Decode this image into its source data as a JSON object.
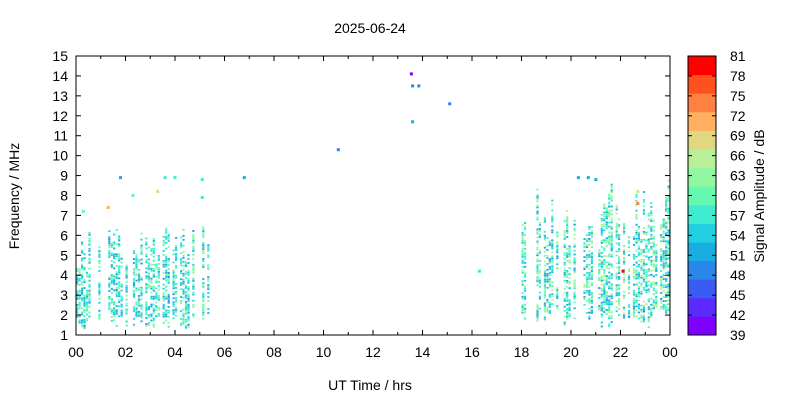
{
  "chart_data": {
    "type": "heatmap",
    "title": "2025-06-24",
    "xlabel": "UT Time / hrs",
    "ylabel": "Frequency / MHz",
    "xlim": [
      0,
      24
    ],
    "ylim": [
      1,
      15
    ],
    "x_ticks": [
      "00",
      "02",
      "04",
      "06",
      "08",
      "10",
      "12",
      "14",
      "16",
      "18",
      "20",
      "22",
      "00"
    ],
    "y_ticks": [
      "1",
      "2",
      "3",
      "4",
      "5",
      "6",
      "7",
      "8",
      "9",
      "10",
      "11",
      "12",
      "13",
      "14",
      "15"
    ],
    "colorbar": {
      "label": "Signal Amplitude / dB",
      "range": [
        39,
        81
      ],
      "ticks": [
        "81",
        "78",
        "75",
        "72",
        "69",
        "66",
        "63",
        "60",
        "57",
        "54",
        "51",
        "48",
        "45",
        "42",
        "39"
      ],
      "colors": [
        "#8000ff",
        "#5a2aff",
        "#3a5cf5",
        "#2a86e8",
        "#1aaee0",
        "#20d0e0",
        "#40ecd0",
        "#66f8b0",
        "#90f8a0",
        "#b8f098",
        "#e0d880",
        "#ffb060",
        "#ff8040",
        "#ff5020",
        "#ff0000"
      ]
    },
    "clusters": [
      {
        "t_start": 0.0,
        "t_end": 5.3,
        "f_min": 1.3,
        "f_max": 6.4,
        "amp_range": [
          50,
          63
        ]
      },
      {
        "t_start": 18.0,
        "t_end": 24.0,
        "f_min": 1.3,
        "f_max": 8.8,
        "amp_range": [
          50,
          66
        ]
      }
    ],
    "points": [
      {
        "t": 13.55,
        "f": 14.1,
        "amp": 39
      },
      {
        "t": 13.6,
        "f": 13.5,
        "amp": 50
      },
      {
        "t": 13.85,
        "f": 13.5,
        "amp": 50
      },
      {
        "t": 15.1,
        "f": 12.6,
        "amp": 50
      },
      {
        "t": 13.6,
        "f": 11.7,
        "amp": 51
      },
      {
        "t": 10.6,
        "f": 10.3,
        "amp": 50
      },
      {
        "t": 6.8,
        "f": 8.9,
        "amp": 51
      },
      {
        "t": 1.8,
        "f": 8.9,
        "amp": 51
      },
      {
        "t": 3.6,
        "f": 8.9,
        "amp": 57
      },
      {
        "t": 4.0,
        "f": 8.9,
        "amp": 57
      },
      {
        "t": 5.1,
        "f": 8.8,
        "amp": 57
      },
      {
        "t": 3.3,
        "f": 8.2,
        "amp": 66
      },
      {
        "t": 2.3,
        "f": 8.0,
        "amp": 60
      },
      {
        "t": 5.1,
        "f": 7.9,
        "amp": 57
      },
      {
        "t": 1.3,
        "f": 7.4,
        "amp": 72
      },
      {
        "t": 0.3,
        "f": 7.2,
        "amp": 60
      },
      {
        "t": 16.3,
        "f": 4.2,
        "amp": 57
      },
      {
        "t": 20.3,
        "f": 8.9,
        "amp": 51
      },
      {
        "t": 20.7,
        "f": 8.9,
        "amp": 51
      },
      {
        "t": 21.0,
        "f": 8.8,
        "amp": 51
      },
      {
        "t": 22.7,
        "f": 7.6,
        "amp": 75
      },
      {
        "t": 22.1,
        "f": 4.2,
        "amp": 81
      },
      {
        "t": 22.7,
        "f": 8.2,
        "amp": 66
      }
    ]
  }
}
